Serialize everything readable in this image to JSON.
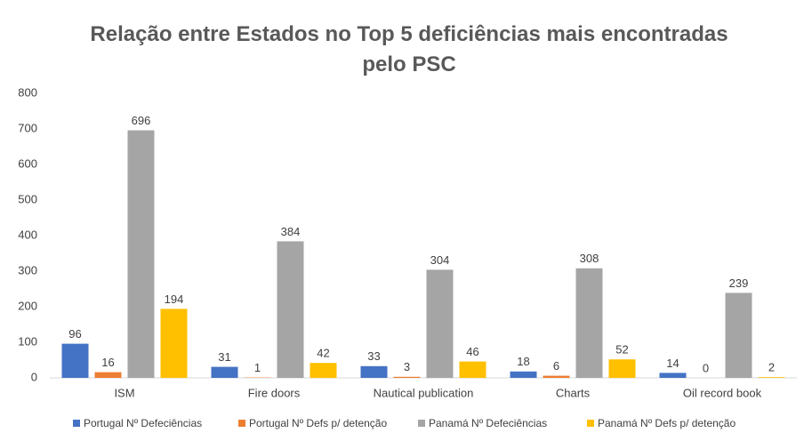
{
  "chart_data": {
    "type": "bar",
    "title": "Relação entre Estados no Top 5 deficiências mais encontradas pelo PSC",
    "categories": [
      "ISM",
      "Fire doors",
      "Nautical publication",
      "Charts",
      "Oil record book"
    ],
    "series": [
      {
        "name": "Portugal Nº Defeciências",
        "color": "#4472c4",
        "values": [
          96,
          31,
          33,
          18,
          14
        ]
      },
      {
        "name": "Portugal Nº Defs p/ detenção",
        "color": "#ed7d31",
        "values": [
          16,
          1,
          3,
          6,
          0
        ]
      },
      {
        "name": "Panamá Nº Defeciências",
        "color": "#a5a5a5",
        "values": [
          696,
          384,
          304,
          308,
          239
        ]
      },
      {
        "name": "Panamá Nº Defs p/ detenção",
        "color": "#ffc000",
        "values": [
          194,
          42,
          46,
          52,
          2
        ]
      }
    ],
    "ylim": [
      0,
      800
    ],
    "yticks": [
      0,
      100,
      200,
      300,
      400,
      500,
      600,
      700,
      800
    ],
    "grid": false,
    "legend": "bottom"
  }
}
